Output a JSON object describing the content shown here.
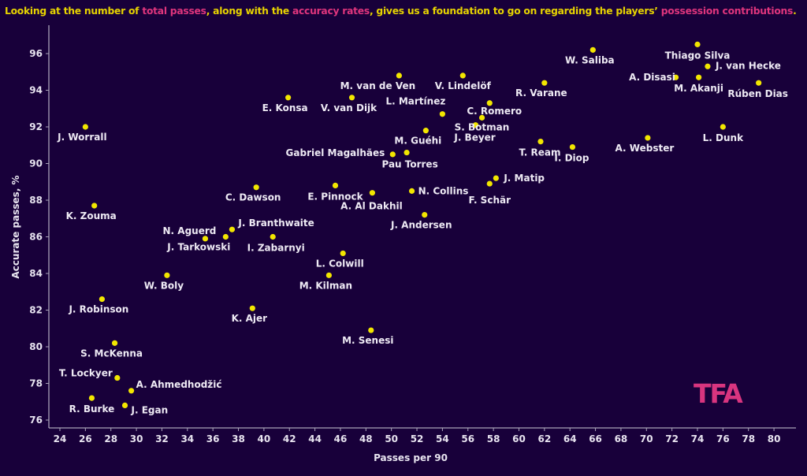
{
  "title": {
    "parts": [
      {
        "text": "Looking at the number of ",
        "highlight": false
      },
      {
        "text": "total passes",
        "highlight": true
      },
      {
        "text": ", along with the ",
        "highlight": false
      },
      {
        "text": "accuracy rates",
        "highlight": true
      },
      {
        "text": ", gives us a foundation to go on regarding the players’ ",
        "highlight": false
      },
      {
        "text": "possession contributions",
        "highlight": true
      },
      {
        "text": ".",
        "highlight": false
      }
    ]
  },
  "logo": "TFA",
  "colors": {
    "background": "#18003a",
    "point": "#f2e600",
    "title": "#e8d400",
    "highlight": "#e0357d",
    "axis": "#a9a3b8"
  },
  "chart_data": {
    "type": "scatter",
    "xlabel": "Passes per 90",
    "ylabel": "Accurate passes, %",
    "xlim": [
      23,
      82
    ],
    "ylim": [
      75.5,
      97.5
    ],
    "xticks": [
      24,
      26,
      28,
      30,
      32,
      34,
      36,
      38,
      40,
      42,
      44,
      46,
      48,
      50,
      52,
      54,
      56,
      58,
      60,
      62,
      64,
      66,
      68,
      70,
      72,
      74,
      76,
      78,
      80
    ],
    "yticks": [
      76,
      78,
      80,
      82,
      84,
      86,
      88,
      90,
      92,
      94,
      96
    ],
    "grid": false,
    "points": [
      {
        "name": "J. Worrall",
        "x": 26.0,
        "y": 92.0
      },
      {
        "name": "K. Zouma",
        "x": 26.7,
        "y": 87.7
      },
      {
        "name": "J. Robinson",
        "x": 27.3,
        "y": 82.6
      },
      {
        "name": "S. McKenna",
        "x": 28.3,
        "y": 80.2
      },
      {
        "name": "T. Lockyer",
        "x": 28.5,
        "y": 78.3
      },
      {
        "name": "A. Ahmedhodžić",
        "x": 29.6,
        "y": 77.6
      },
      {
        "name": "R. Burke",
        "x": 26.5,
        "y": 77.2
      },
      {
        "name": "J. Egan",
        "x": 29.1,
        "y": 76.8
      },
      {
        "name": "W. Boly",
        "x": 32.4,
        "y": 83.9
      },
      {
        "name": "N. Aguerd",
        "x": 35.4,
        "y": 85.9
      },
      {
        "name": "J. Tarkowski",
        "x": 37.0,
        "y": 86.0
      },
      {
        "name": "J. Branthwaite",
        "x": 37.5,
        "y": 86.4
      },
      {
        "name": "C. Dawson",
        "x": 39.4,
        "y": 88.7
      },
      {
        "name": "K. Ajer",
        "x": 39.1,
        "y": 82.1
      },
      {
        "name": "I. Zabarnyi",
        "x": 40.7,
        "y": 86.0
      },
      {
        "name": "E. Konsa",
        "x": 41.9,
        "y": 93.6
      },
      {
        "name": "V. van Dijk",
        "x": 46.9,
        "y": 93.6
      },
      {
        "name": "E. Pinnock",
        "x": 45.6,
        "y": 88.8
      },
      {
        "name": "L. Colwill",
        "x": 46.2,
        "y": 85.1
      },
      {
        "name": "M. Kilman",
        "x": 45.1,
        "y": 83.9
      },
      {
        "name": "A. Al Dakhil",
        "x": 48.5,
        "y": 88.4
      },
      {
        "name": "M. Senesi",
        "x": 48.4,
        "y": 80.9
      },
      {
        "name": "M. van de Ven",
        "x": 50.6,
        "y": 94.8
      },
      {
        "name": "Gabriel Magalhães",
        "x": 50.1,
        "y": 90.5
      },
      {
        "name": "Pau Torres",
        "x": 51.2,
        "y": 90.6
      },
      {
        "name": "N. Collins",
        "x": 51.6,
        "y": 88.5
      },
      {
        "name": "M. Guéhi",
        "x": 52.7,
        "y": 91.8
      },
      {
        "name": "J. Andersen",
        "x": 52.6,
        "y": 87.2
      },
      {
        "name": "L. Martínez",
        "x": 54.0,
        "y": 92.7
      },
      {
        "name": "V. Lindelöf",
        "x": 55.6,
        "y": 94.8
      },
      {
        "name": "S. Botman",
        "x": 56.6,
        "y": 92.1
      },
      {
        "name": "J. Beyer",
        "x": 57.1,
        "y": 92.5
      },
      {
        "name": "C. Romero",
        "x": 57.7,
        "y": 93.3
      },
      {
        "name": "F. Schär",
        "x": 57.7,
        "y": 88.9
      },
      {
        "name": "J. Matip",
        "x": 58.2,
        "y": 89.2
      },
      {
        "name": "R. Varane",
        "x": 62.0,
        "y": 94.4
      },
      {
        "name": "T. Ream",
        "x": 61.7,
        "y": 91.2
      },
      {
        "name": "I. Diop",
        "x": 64.2,
        "y": 90.9
      },
      {
        "name": "W. Saliba",
        "x": 65.8,
        "y": 96.2
      },
      {
        "name": "A. Webster",
        "x": 70.1,
        "y": 91.4
      },
      {
        "name": "A. Disasi",
        "x": 72.3,
        "y": 94.7
      },
      {
        "name": "M. Akanji",
        "x": 74.1,
        "y": 94.7
      },
      {
        "name": "Thiago Silva",
        "x": 74.0,
        "y": 96.5
      },
      {
        "name": "J. van Hecke",
        "x": 74.8,
        "y": 95.3
      },
      {
        "name": "Rúben Dias",
        "x": 78.8,
        "y": 94.4
      },
      {
        "name": "L. Dunk",
        "x": 76.0,
        "y": 92.0
      }
    ]
  }
}
